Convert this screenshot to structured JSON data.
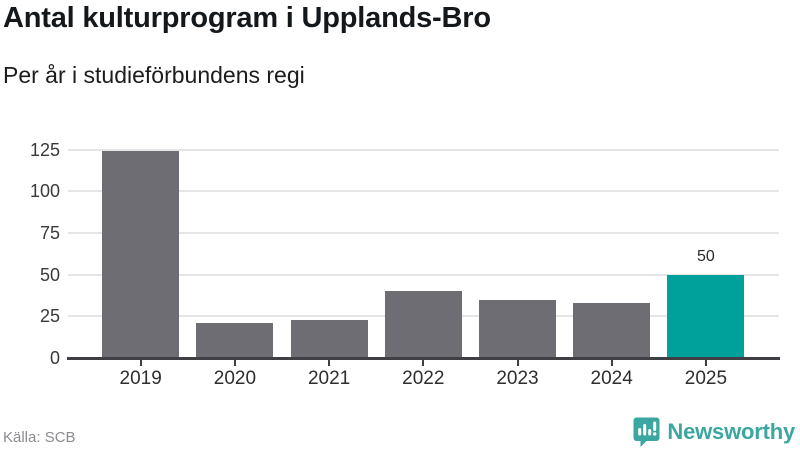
{
  "header": {
    "title": "Antal kulturprogram i Upplands-Bro",
    "subtitle": "Per år i studieförbundens regi"
  },
  "chart_data": {
    "type": "bar",
    "title": "Antal kulturprogram i Upplands-Bro",
    "subtitle": "Per år i studieförbundens regi",
    "categories": [
      "2019",
      "2020",
      "2021",
      "2022",
      "2023",
      "2024",
      "2025"
    ],
    "values": [
      124,
      21,
      23,
      40,
      35,
      33,
      50
    ],
    "y_ticks": [
      0,
      25,
      50,
      75,
      100,
      125
    ],
    "ylim": [
      0,
      131
    ],
    "grid": "horizontal",
    "legend": "none",
    "highlight_index": 6,
    "highlight_value_label": "50",
    "bar_color": "#6e6d73",
    "highlight_color": "#00a19a",
    "grid_color": "#e5e5e5",
    "axis_color": "#3f3f44"
  },
  "footer": {
    "source": "Källa: SCB",
    "brand": "Newsworthy",
    "brand_color": "#3ba7a0"
  }
}
